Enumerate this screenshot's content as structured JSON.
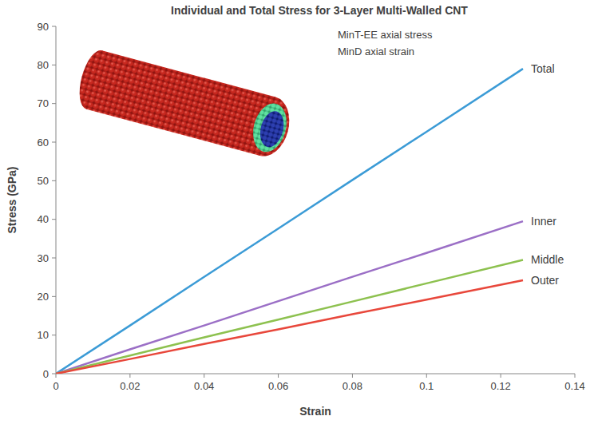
{
  "chart_data": {
    "type": "line",
    "title": "Individual and Total Stress for 3-Layer Multi-Walled CNT",
    "annotations": [
      "MinT-EE axial stress",
      "MinD axial strain"
    ],
    "x_label": "Strain",
    "y_label": "Stress (GPa)",
    "x": [
      0,
      0.02,
      0.04,
      0.06,
      0.08,
      0.1,
      0.126
    ],
    "series": [
      {
        "name": "Total",
        "color": "#3b9bd6",
        "values": [
          0,
          12.5,
          25.1,
          37.6,
          50.2,
          62.7,
          79.0
        ]
      },
      {
        "name": "Inner",
        "color": "#9b6fc6",
        "values": [
          0,
          6.3,
          12.5,
          18.8,
          25.1,
          31.3,
          39.5
        ]
      },
      {
        "name": "Middle",
        "color": "#8dc14f",
        "values": [
          0,
          4.7,
          9.4,
          14.0,
          18.7,
          23.4,
          29.5
        ]
      },
      {
        "name": "Outer",
        "color": "#e8473b",
        "values": [
          0,
          3.8,
          7.7,
          11.5,
          15.4,
          19.2,
          24.2
        ]
      }
    ],
    "xlim": [
      0,
      0.14
    ],
    "xticks": [
      0,
      0.02,
      0.04,
      0.06,
      0.08,
      0.1,
      0.12,
      0.14
    ],
    "ylim": [
      0,
      90
    ],
    "yticks": [
      0,
      10,
      20,
      30,
      40,
      50,
      60,
      70,
      80,
      90
    ],
    "grid": false
  }
}
